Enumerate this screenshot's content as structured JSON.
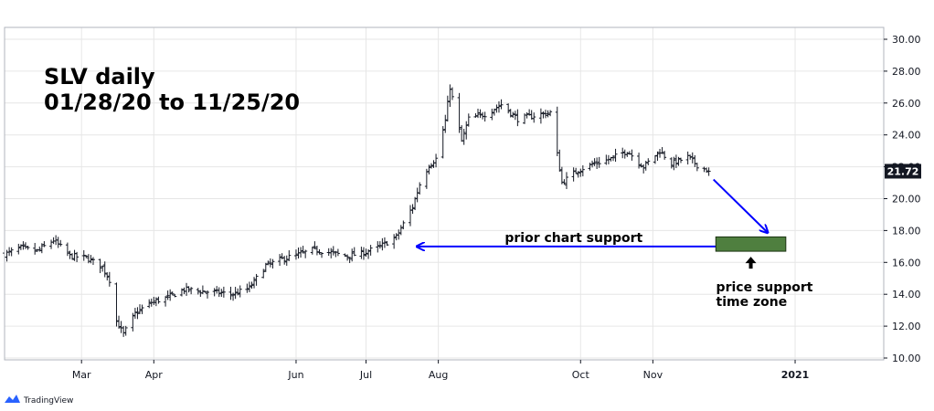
{
  "chart_data": {
    "type": "ohlc",
    "title_line1": "SLV daily",
    "title_line2": "01/28/20 to 11/25/20",
    "y_ticks": [
      "10.00",
      "12.00",
      "14.00",
      "16.00",
      "18.00",
      "20.00",
      "22.00",
      "24.00",
      "26.00",
      "28.00",
      "30.00"
    ],
    "ylim": [
      10,
      30
    ],
    "x_labels": [
      {
        "label": "Mar",
        "date": "2020-03-01"
      },
      {
        "label": "Apr",
        "date": "2020-04-01"
      },
      {
        "label": "Jun",
        "date": "2020-06-01"
      },
      {
        "label": "Jul",
        "date": "2020-07-01"
      },
      {
        "label": "Aug",
        "date": "2020-08-01"
      },
      {
        "label": "Oct",
        "date": "2020-10-01"
      },
      {
        "label": "Nov",
        "date": "2020-11-01"
      },
      {
        "label": "2021",
        "date": "2021-01-01"
      }
    ],
    "xlim": [
      "2020-01-28",
      "2021-02-08"
    ],
    "last_price": "21.72",
    "last_price_value": 21.72,
    "closes": [
      [
        "2020-01-28",
        16.5
      ],
      [
        "2020-02-04",
        16.9
      ],
      [
        "2020-02-11",
        16.7
      ],
      [
        "2020-02-18",
        17.4
      ],
      [
        "2020-02-25",
        16.4
      ],
      [
        "2020-03-03",
        16.3
      ],
      [
        "2020-03-10",
        15.7
      ],
      [
        "2020-03-13",
        14.9
      ],
      [
        "2020-03-16",
        12.3
      ],
      [
        "2020-03-19",
        11.5
      ],
      [
        "2020-03-24",
        12.8
      ],
      [
        "2020-03-31",
        13.5
      ],
      [
        "2020-04-07",
        13.8
      ],
      [
        "2020-04-14",
        14.3
      ],
      [
        "2020-04-21",
        14.2
      ],
      [
        "2020-04-28",
        14.1
      ],
      [
        "2020-05-05",
        14.0
      ],
      [
        "2020-05-12",
        14.4
      ],
      [
        "2020-05-19",
        15.8
      ],
      [
        "2020-05-26",
        16.2
      ],
      [
        "2020-06-02",
        16.5
      ],
      [
        "2020-06-09",
        16.8
      ],
      [
        "2020-06-16",
        16.6
      ],
      [
        "2020-06-23",
        16.4
      ],
      [
        "2020-06-30",
        16.6
      ],
      [
        "2020-07-07",
        17.0
      ],
      [
        "2020-07-14",
        17.6
      ],
      [
        "2020-07-21",
        19.5
      ],
      [
        "2020-07-24",
        20.9
      ],
      [
        "2020-07-28",
        22.1
      ],
      [
        "2020-07-31",
        22.5
      ],
      [
        "2020-08-04",
        24.9
      ],
      [
        "2020-08-06",
        27.0
      ],
      [
        "2020-08-11",
        23.6
      ],
      [
        "2020-08-14",
        25.0
      ],
      [
        "2020-08-21",
        25.3
      ],
      [
        "2020-08-28",
        25.9
      ],
      [
        "2020-09-04",
        25.0
      ],
      [
        "2020-09-11",
        25.2
      ],
      [
        "2020-09-18",
        25.4
      ],
      [
        "2020-09-23",
        21.0
      ],
      [
        "2020-09-30",
        21.8
      ],
      [
        "2020-10-07",
        22.2
      ],
      [
        "2020-10-14",
        22.5
      ],
      [
        "2020-10-21",
        23.0
      ],
      [
        "2020-10-28",
        22.0
      ],
      [
        "2020-11-04",
        23.0
      ],
      [
        "2020-11-09",
        22.2
      ],
      [
        "2020-11-16",
        22.6
      ],
      [
        "2020-11-20",
        22.1
      ],
      [
        "2020-11-25",
        21.72
      ]
    ],
    "annotations": [
      {
        "text": "prior chart support",
        "kind": "arrow",
        "y": 17.0,
        "x_from": "2020-12-15",
        "x_to": "2020-07-20"
      },
      {
        "text": "price support time zone",
        "line1": "price support",
        "line2": "time zone",
        "kind": "zone",
        "date_from": "2020-11-28",
        "date_to": "2020-12-28",
        "y_from": 16.7,
        "y_to": 17.6
      },
      {
        "kind": "arrow",
        "text": "",
        "x_from": "2020-11-27",
        "y_from": 21.2,
        "x_to": "2020-12-20",
        "y_to": 17.9
      }
    ]
  },
  "colors": {
    "bars": "#131722",
    "grid": "#e6e6e6",
    "support_line": "#0000ff",
    "zone_fill": "#4f7f3f",
    "zone_border": "#1b3312",
    "price_tag": "#131722"
  },
  "branding": {
    "label": "TradingView",
    "icon": "tradingview-logo-icon"
  }
}
